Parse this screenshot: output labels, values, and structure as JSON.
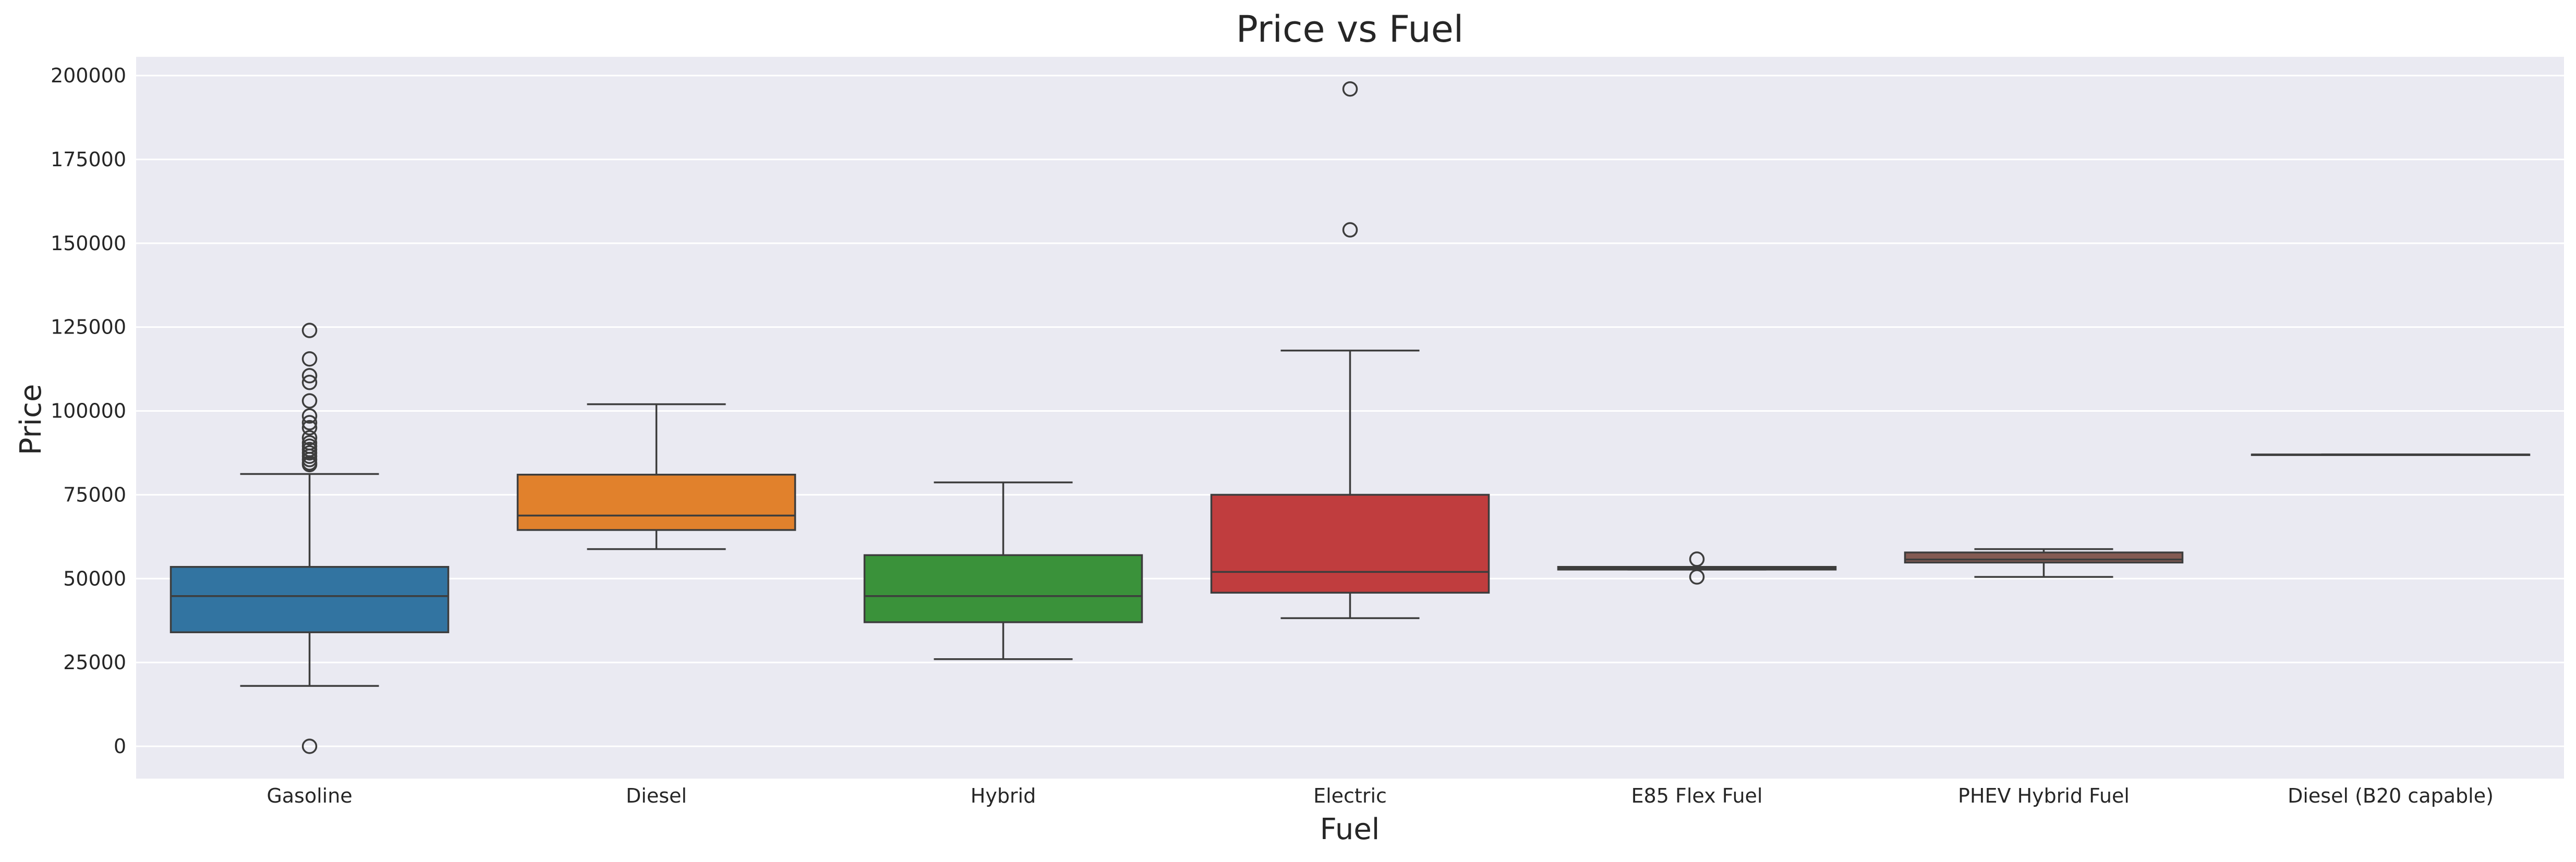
{
  "chart_data": {
    "type": "box",
    "title": "Price vs Fuel",
    "xlabel": "Fuel",
    "ylabel": "Price",
    "ylim": [
      -8000,
      210000
    ],
    "yticks": [
      0,
      25000,
      50000,
      75000,
      100000,
      125000,
      150000,
      175000,
      200000
    ],
    "ytick_labels": [
      "0",
      "25000",
      "50000",
      "75000",
      "100000",
      "125000",
      "150000",
      "175000",
      "200000"
    ],
    "grid": true,
    "background": "#eaeaf2",
    "categories": [
      "Gasoline",
      "Diesel",
      "Hybrid",
      "Electric",
      "E85 Flex Fuel",
      "PHEV Hybrid Fuel",
      "Diesel (B20 capable)"
    ],
    "boxes": [
      {
        "category": "Gasoline",
        "whisker_low": 18000,
        "q1": 34000,
        "median": 44800,
        "q3": 53500,
        "whisker_high": 81200,
        "outliers": [
          124000,
          115500,
          110500,
          108500,
          103000,
          98500,
          96500,
          95000,
          92000,
          90500,
          89500,
          88500,
          87500,
          86500,
          85500,
          84500,
          84000,
          0
        ],
        "color": "#3274a1"
      },
      {
        "category": "Diesel",
        "whisker_low": 58800,
        "q1": 64500,
        "median": 68800,
        "q3": 81000,
        "whisker_high": 102000,
        "outliers": [],
        "color": "#e1812c"
      },
      {
        "category": "Hybrid",
        "whisker_low": 26000,
        "q1": 37000,
        "median": 44800,
        "q3": 57000,
        "whisker_high": 78700,
        "outliers": [],
        "color": "#3a923a"
      },
      {
        "category": "Electric",
        "whisker_low": 38200,
        "q1": 45800,
        "median": 52000,
        "q3": 75000,
        "whisker_high": 118000,
        "outliers": [
          196000,
          154000
        ],
        "color": "#c03d3e"
      },
      {
        "category": "E85 Flex Fuel",
        "whisker_low": 52700,
        "q1": 52700,
        "median": 53100,
        "q3": 53500,
        "whisker_high": 53500,
        "outliers": [
          55800,
          50500
        ],
        "color": "#9372b2"
      },
      {
        "category": "PHEV Hybrid Fuel",
        "whisker_low": 50500,
        "q1": 54800,
        "median": 55700,
        "q3": 57800,
        "whisker_high": 58800,
        "outliers": [],
        "color": "#845b53"
      },
      {
        "category": "Diesel (B20 capable)",
        "whisker_low": 87000,
        "q1": 87000,
        "median": 87000,
        "q3": 87000,
        "whisker_high": 87000,
        "outliers": [],
        "color": "#d684bd"
      }
    ]
  }
}
